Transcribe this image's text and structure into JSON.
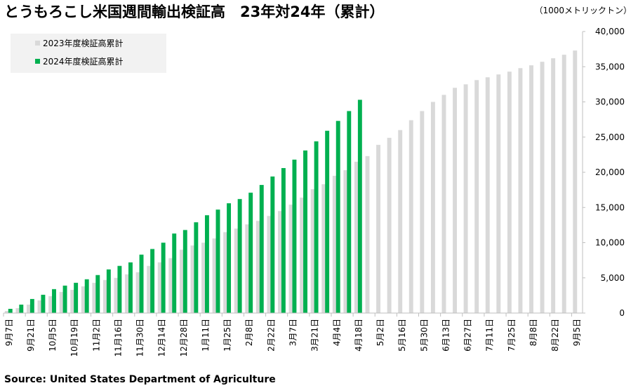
{
  "chart_data": {
    "type": "bar",
    "title": "とうもろこし米国週間輸出検証高　23年対24年（累計）",
    "unit_label": "（1000メトリックトン）",
    "source": "Source: United States Department of Agriculture",
    "categories": [
      "9月7日",
      null,
      "9月21日",
      null,
      "10月5日",
      null,
      "10月19日",
      null,
      "11月2日",
      null,
      "11月16日",
      null,
      "11月30日",
      null,
      "12月14日",
      null,
      "12月28日",
      null,
      "1月11日",
      null,
      "1月25日",
      null,
      "2月8日",
      null,
      "2月22日",
      null,
      "3月7日",
      null,
      "3月21日",
      null,
      "4月4日",
      null,
      "4月18日",
      null,
      "5月2日",
      null,
      "5月16日",
      null,
      "5月30日",
      null,
      "6月13日",
      null,
      "6月27日",
      null,
      "7月11日",
      null,
      "7月25日",
      null,
      "8月8日",
      null,
      "8月22日",
      null,
      "9月5日"
    ],
    "series": [
      {
        "name": "2023年度検証高累計",
        "color": "#d9d9d9",
        "values": [
          300,
          700,
          1200,
          1800,
          2400,
          3000,
          3300,
          3800,
          4300,
          4700,
          5000,
          5500,
          5800,
          6700,
          7200,
          7800,
          9000,
          9600,
          10000,
          10600,
          11500,
          12000,
          12600,
          13100,
          13800,
          14500,
          15400,
          16400,
          17600,
          18300,
          19500,
          20300,
          21500,
          22300,
          23900,
          24900,
          26000,
          27400,
          28700,
          30000,
          31000,
          32000,
          32500,
          33100,
          33500,
          33900,
          34300,
          34800,
          35200,
          35700,
          36200,
          36700,
          37300
        ]
      },
      {
        "name": "2024年度検証高累計",
        "color": "#00b050",
        "values": [
          600,
          1200,
          2000,
          2600,
          3400,
          3900,
          4300,
          4800,
          5400,
          6200,
          6700,
          7200,
          8300,
          9100,
          10000,
          11300,
          11800,
          12900,
          13900,
          14700,
          15600,
          16200,
          17100,
          18200,
          19400,
          20600,
          21800,
          23100,
          24400,
          25900,
          27300,
          28700,
          30300,
          null,
          null,
          null,
          null,
          null,
          null,
          null,
          null,
          null,
          null,
          null,
          null,
          null,
          null,
          null,
          null,
          null,
          null,
          null,
          null
        ]
      }
    ],
    "ylim": [
      0,
      40000
    ],
    "yticks": [
      0,
      {
        "value": 5000,
        "label": "5,000"
      },
      {
        "value": 10000,
        "label": "10,000"
      },
      {
        "value": 15000,
        "label": "15,000"
      },
      {
        "value": 20000,
        "label": "20,000"
      },
      {
        "value": 25000,
        "label": "25,000"
      },
      {
        "value": 30000,
        "label": "30,000"
      },
      {
        "value": 35000,
        "label": "35,000"
      },
      {
        "value": 40000,
        "label": "40,000"
      }
    ],
    "y_axis_side": "right",
    "legend": "upper left",
    "grid": false
  }
}
